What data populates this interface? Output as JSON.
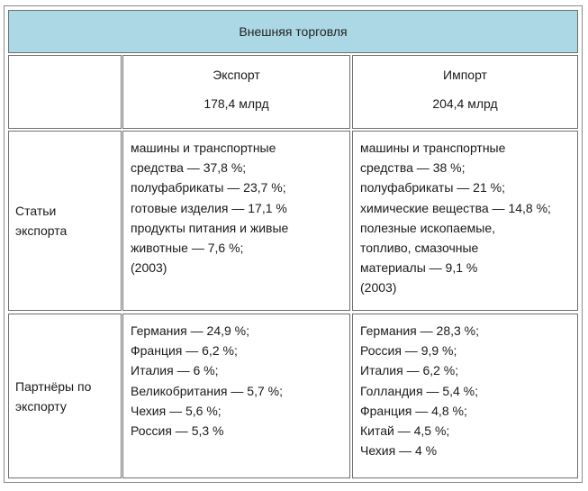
{
  "table": {
    "title": "Внешняя торговля",
    "columns": {
      "export": {
        "name": "Экспорт",
        "amount": "178,4 млрд"
      },
      "import": {
        "name": "Импорт",
        "amount": "204,4 млрд"
      }
    },
    "rows": {
      "articles": {
        "label_line1": "Статьи",
        "label_line2": "экспорта",
        "export_lines": [
          "машины и транспортные",
          "средства — 37,8 %;",
          "полуфабрикаты — 23,7 %;",
          "готовые изделия — 17,1 %",
          "продукты питания и живые",
          "животные — 7,6 %;",
          "(2003)"
        ],
        "import_lines": [
          "машины и транспортные",
          "средства — 38 %;",
          "полуфабрикаты — 21 %;",
          "химические вещества — 14,8 %;",
          "полезные ископаемые,",
          "топливо, смазочные",
          "материалы — 9,1 %",
          "(2003)"
        ]
      },
      "partners": {
        "label_line1": "Партнёры по",
        "label_line2": "экспорту",
        "export_lines": [
          "Германия — 24,9 %;",
          "Франция — 6,2 %;",
          "Италия — 6 %;",
          "Великобритания — 5,7 %;",
          "Чехия — 5,6 %;",
          "Россия — 5,3 %"
        ],
        "import_lines": [
          "Германия — 28,3 %;",
          "Россия — 9,9 %;",
          "Италия — 6,2 %;",
          "Голландия — 5,4 %;",
          "Франция — 4,8 %;",
          "Китай — 4,5 %;",
          "Чехия — 4 %"
        ]
      }
    },
    "colors": {
      "header_bg": "#acd7e5",
      "border": "#6f6f6f"
    }
  }
}
